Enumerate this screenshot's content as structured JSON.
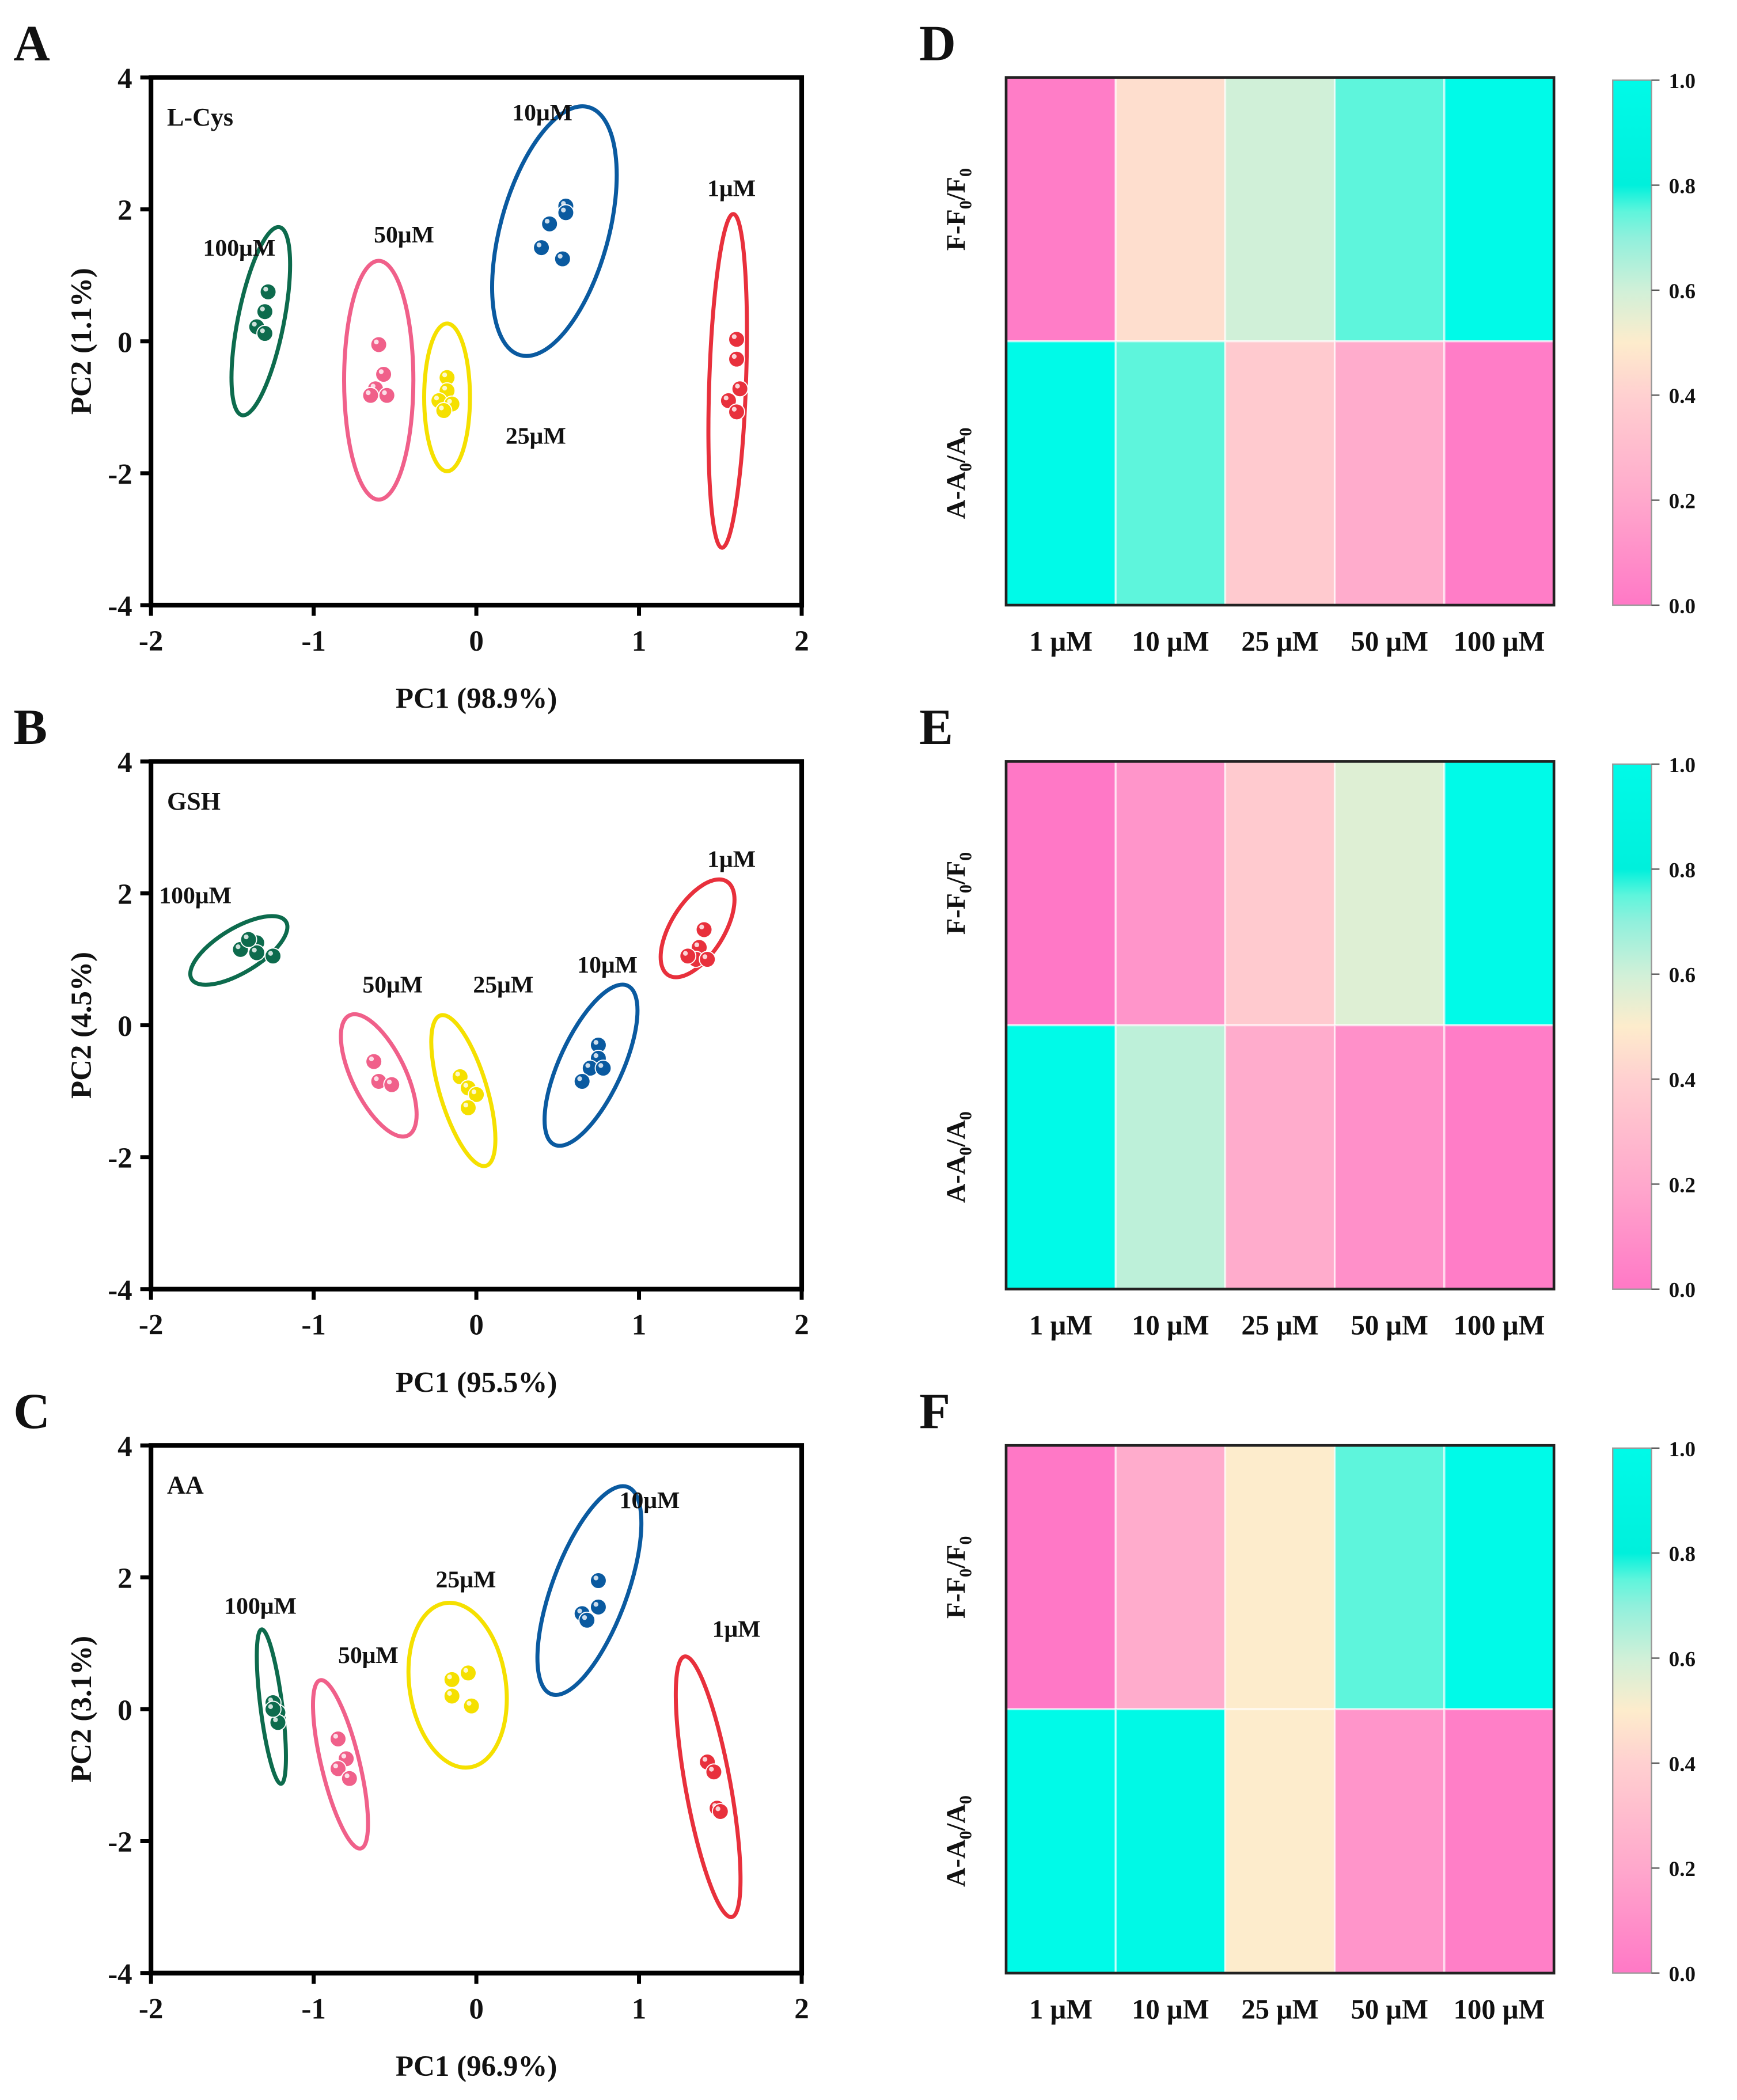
{
  "panel_letters": [
    "A",
    "B",
    "C",
    "D",
    "E",
    "F"
  ],
  "colormap": {
    "stops": [
      [
        0,
        "#ff78c6"
      ],
      [
        0.2,
        "#ffa8cc"
      ],
      [
        0.4,
        "#ffd0d0"
      ],
      [
        0.5,
        "#fdeccc"
      ],
      [
        0.6,
        "#d0f0d8"
      ],
      [
        0.7,
        "#90f0dc"
      ],
      [
        0.75,
        "#5ef5dc"
      ],
      [
        0.8,
        "#00f0dc"
      ],
      [
        1.0,
        "#00fae8"
      ]
    ],
    "ticks": [
      "0.0",
      "0.2",
      "0.4",
      "0.6",
      "0.8",
      "1.0"
    ],
    "tick_values": [
      0,
      0.2,
      0.4,
      0.6,
      0.8,
      1.0
    ]
  },
  "chart_data": [
    {
      "type": "scatter",
      "panel": "A",
      "title": "L-Cys",
      "xlabel": "PC1 (98.9%)",
      "ylabel": "PC2 (1.1%)",
      "xlim": [
        -2,
        2
      ],
      "ylim": [
        -4,
        4
      ],
      "xticks": [
        "-2",
        "-1",
        "0",
        "1",
        "2"
      ],
      "xtick_values": [
        -2,
        -1,
        0,
        1,
        2
      ],
      "yticks": [
        "-4",
        "-2",
        "0",
        "2",
        "4"
      ],
      "ytick_values": [
        -4,
        -2,
        0,
        2,
        4
      ],
      "groups": [
        {
          "name": "100μM",
          "color": "#0d6b4d",
          "label_at": [
            -1.68,
            1.3
          ],
          "ellipse": {
            "p1": [
              -1.21,
              1.73
            ],
            "p2": [
              -1.44,
              -1.12
            ],
            "ratio": 0.24
          },
          "points": [
            [
              -1.28,
              0.75
            ],
            [
              -1.3,
              0.45
            ],
            [
              -1.35,
              0.22
            ],
            [
              -1.3,
              0.12
            ]
          ]
        },
        {
          "name": "50μM",
          "color": "#f0608a",
          "label_at": [
            -0.63,
            1.5
          ],
          "ellipse": {
            "p1": [
              -0.6,
              1.22
            ],
            "p2": [
              -0.6,
              -2.4
            ],
            "ratio": 0.29
          },
          "points": [
            [
              -0.6,
              -0.05
            ],
            [
              -0.57,
              -0.5
            ],
            [
              -0.62,
              -0.72
            ],
            [
              -0.65,
              -0.82
            ],
            [
              -0.55,
              -0.82
            ]
          ]
        },
        {
          "name": "25μM",
          "color": "#f5e000",
          "label_at": [
            0.18,
            -1.55
          ],
          "ellipse": {
            "p1": [
              -0.18,
              0.27
            ],
            "p2": [
              -0.18,
              -1.97
            ],
            "ratio": 0.31
          },
          "points": [
            [
              -0.18,
              -0.55
            ],
            [
              -0.18,
              -0.75
            ],
            [
              -0.23,
              -0.9
            ],
            [
              -0.15,
              -0.95
            ],
            [
              -0.2,
              -1.05
            ]
          ]
        },
        {
          "name": "10μM",
          "color": "#0a5aa0",
          "label_at": [
            0.22,
            3.35
          ],
          "ellipse": {
            "p1": [
              0.69,
              3.55
            ],
            "p2": [
              0.27,
              -0.21
            ],
            "ratio": 0.42
          },
          "points": [
            [
              0.55,
              2.05
            ],
            [
              0.55,
              1.95
            ],
            [
              0.45,
              1.78
            ],
            [
              0.4,
              1.42
            ],
            [
              0.53,
              1.25
            ]
          ]
        },
        {
          "name": "1μM",
          "color": "#e8303c",
          "label_at": [
            1.42,
            2.2
          ],
          "ellipse": {
            "p1": [
              1.58,
              1.93
            ],
            "p2": [
              1.51,
              -3.13
            ],
            "ratio": 0.11
          },
          "points": [
            [
              1.6,
              0.03
            ],
            [
              1.6,
              -0.27
            ],
            [
              1.62,
              -0.72
            ],
            [
              1.55,
              -0.9
            ],
            [
              1.6,
              -1.07
            ]
          ]
        }
      ]
    },
    {
      "type": "scatter",
      "panel": "B",
      "title": "GSH",
      "xlabel": "PC1 (95.5%)",
      "ylabel": "PC2 (4.5%)",
      "xlim": [
        -2,
        2
      ],
      "ylim": [
        -4,
        4
      ],
      "xticks": [
        "-2",
        "-1",
        "0",
        "1",
        "2"
      ],
      "xtick_values": [
        -2,
        -1,
        0,
        1,
        2
      ],
      "yticks": [
        "-4",
        "-2",
        "0",
        "2",
        "4"
      ],
      "ytick_values": [
        -4,
        -2,
        0,
        2,
        4
      ],
      "groups": [
        {
          "name": "100μM",
          "color": "#0d6b4d",
          "label_at": [
            -1.95,
            1.85
          ],
          "ellipse": {
            "p1": [
              -1.17,
              1.57
            ],
            "p2": [
              -1.75,
              0.7
            ],
            "ratio": 0.4
          },
          "points": [
            [
              -1.45,
              1.15
            ],
            [
              -1.35,
              1.25
            ],
            [
              -1.35,
              1.1
            ],
            [
              -1.25,
              1.05
            ],
            [
              -1.4,
              1.3
            ]
          ]
        },
        {
          "name": "50μM",
          "color": "#f0608a",
          "label_at": [
            -0.7,
            0.5
          ],
          "ellipse": {
            "p1": [
              -0.78,
              0.15
            ],
            "p2": [
              -0.42,
              -1.67
            ],
            "ratio": 0.4
          },
          "points": [
            [
              -0.63,
              -0.55
            ],
            [
              -0.6,
              -0.85
            ],
            [
              -0.52,
              -0.9
            ]
          ]
        },
        {
          "name": "25μM",
          "color": "#f5e000",
          "label_at": [
            -0.02,
            0.5
          ],
          "ellipse": {
            "p1": [
              -0.22,
              0.15
            ],
            "p2": [
              0.06,
              -2.13
            ],
            "ratio": 0.3
          },
          "points": [
            [
              -0.1,
              -0.78
            ],
            [
              -0.05,
              -0.95
            ],
            [
              0.0,
              -1.05
            ],
            [
              -0.05,
              -1.25
            ]
          ]
        },
        {
          "name": "10μM",
          "color": "#0a5aa0",
          "label_at": [
            0.62,
            0.8
          ],
          "ellipse": {
            "p1": [
              0.93,
              0.6
            ],
            "p2": [
              0.48,
              -1.81
            ],
            "ratio": 0.36
          },
          "points": [
            [
              0.75,
              -0.3
            ],
            [
              0.75,
              -0.5
            ],
            [
              0.7,
              -0.65
            ],
            [
              0.78,
              -0.65
            ],
            [
              0.65,
              -0.85
            ]
          ]
        },
        {
          "name": "1μM",
          "color": "#e8303c",
          "label_at": [
            1.42,
            2.4
          ],
          "ellipse": {
            "p1": [
              1.54,
              2.18
            ],
            "p2": [
              1.18,
              0.76
            ],
            "ratio": 0.48
          },
          "points": [
            [
              1.4,
              1.45
            ],
            [
              1.37,
              1.18
            ],
            [
              1.35,
              1.0
            ],
            [
              1.42,
              1.0
            ],
            [
              1.3,
              1.05
            ]
          ]
        }
      ]
    },
    {
      "type": "scatter",
      "panel": "C",
      "title": "AA",
      "xlabel": "PC1 (96.9%)",
      "ylabel": "PC2 (3.1%)",
      "xlim": [
        -2,
        2
      ],
      "ylim": [
        -4,
        4
      ],
      "xticks": [
        "-2",
        "-1",
        "0",
        "1",
        "2"
      ],
      "xtick_values": [
        -2,
        -1,
        0,
        1,
        2
      ],
      "yticks": [
        "-4",
        "-2",
        "0",
        "2",
        "4"
      ],
      "ytick_values": [
        -4,
        -2,
        0,
        2,
        4
      ],
      "groups": [
        {
          "name": "100μM",
          "color": "#0d6b4d",
          "label_at": [
            -1.55,
            1.45
          ],
          "ellipse": {
            "p1": [
              -1.32,
              1.21
            ],
            "p2": [
              -1.2,
              -1.13
            ],
            "ratio": 0.14
          },
          "points": [
            [
              -1.25,
              0.1
            ],
            [
              -1.22,
              -0.05
            ],
            [
              -1.22,
              -0.2
            ],
            [
              -1.25,
              0.0
            ]
          ]
        },
        {
          "name": "50μM",
          "color": "#f0608a",
          "label_at": [
            -0.85,
            0.7
          ],
          "ellipse": {
            "p1": [
              -0.96,
              0.44
            ],
            "p2": [
              -0.71,
              -2.11
            ],
            "ratio": 0.22
          },
          "points": [
            [
              -0.85,
              -0.45
            ],
            [
              -0.8,
              -0.75
            ],
            [
              -0.85,
              -0.9
            ],
            [
              -0.78,
              -1.05
            ]
          ]
        },
        {
          "name": "25μM",
          "color": "#f5e000",
          "label_at": [
            -0.25,
            1.85
          ],
          "ellipse": {
            "p1": [
              -0.19,
              1.61
            ],
            "p2": [
              -0.04,
              -0.88
            ],
            "ratio": 0.58
          },
          "points": [
            [
              -0.15,
              0.45
            ],
            [
              -0.05,
              0.55
            ],
            [
              -0.15,
              0.2
            ],
            [
              -0.03,
              0.05
            ]
          ]
        },
        {
          "name": "10μM",
          "color": "#0a5aa0",
          "label_at": [
            0.88,
            3.05
          ],
          "ellipse": {
            "p1": [
              0.93,
              3.37
            ],
            "p2": [
              0.46,
              0.23
            ],
            "ratio": 0.34
          },
          "points": [
            [
              0.75,
              1.95
            ],
            [
              0.75,
              1.55
            ],
            [
              0.65,
              1.45
            ],
            [
              0.68,
              1.35
            ]
          ]
        },
        {
          "name": "1μM",
          "color": "#e8303c",
          "label_at": [
            1.45,
            1.1
          ],
          "ellipse": {
            "p1": [
              1.28,
              0.8
            ],
            "p2": [
              1.57,
              -3.15
            ],
            "ratio": 0.17
          },
          "points": [
            [
              1.42,
              -0.8
            ],
            [
              1.46,
              -0.95
            ],
            [
              1.48,
              -1.5
            ],
            [
              1.5,
              -1.55
            ]
          ]
        }
      ]
    },
    {
      "type": "heatmap",
      "panel": "D",
      "columns": [
        "1 μM",
        "10 μM",
        "25 μM",
        "50 μM",
        "100 μM"
      ],
      "rows": [
        {
          "label_parts": [
            "F-F",
            "0",
            "/F",
            "0"
          ]
        },
        {
          "label_parts": [
            "A-A",
            "0",
            "/A",
            "0"
          ]
        }
      ],
      "values": [
        [
          0.02,
          0.45,
          0.6,
          0.75,
          1.0
        ],
        [
          1.0,
          0.75,
          0.37,
          0.22,
          0.02
        ]
      ],
      "colorbar_range": [
        0,
        1
      ]
    },
    {
      "type": "heatmap",
      "panel": "E",
      "columns": [
        "1 μM",
        "10 μM",
        "25 μM",
        "50 μM",
        "100 μM"
      ],
      "rows": [
        {
          "label_parts": [
            "F-F",
            "0",
            "/F",
            "0"
          ]
        },
        {
          "label_parts": [
            "A-A",
            "0",
            "/A",
            "0"
          ]
        }
      ],
      "values": [
        [
          0.0,
          0.12,
          0.37,
          0.57,
          1.0
        ],
        [
          1.0,
          0.63,
          0.22,
          0.1,
          0.02
        ]
      ],
      "colorbar_range": [
        0,
        1
      ]
    },
    {
      "type": "heatmap",
      "panel": "F",
      "columns": [
        "1 μM",
        "10 μM",
        "25 μM",
        "50 μM",
        "100 μM"
      ],
      "rows": [
        {
          "label_parts": [
            "F-F",
            "0",
            "/F",
            "0"
          ]
        },
        {
          "label_parts": [
            "A-A",
            "0",
            "/A",
            "0"
          ]
        }
      ],
      "values": [
        [
          0.0,
          0.22,
          0.5,
          0.75,
          1.0
        ],
        [
          1.0,
          0.97,
          0.5,
          0.12,
          0.03
        ]
      ],
      "colorbar_range": [
        0,
        1
      ]
    }
  ]
}
